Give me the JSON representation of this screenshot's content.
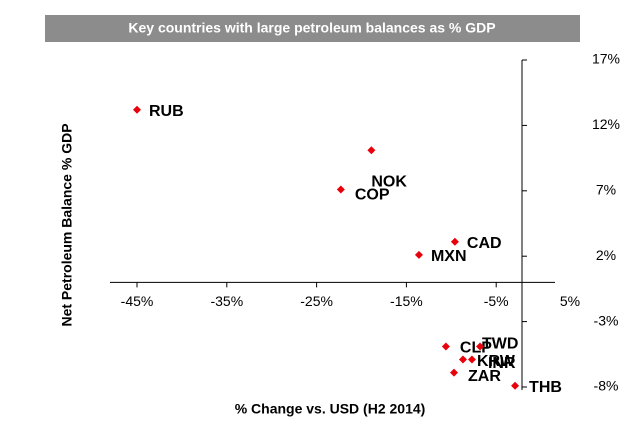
{
  "chart_data": {
    "type": "scatter",
    "title": "Key countries with large petroleum balances as % GDP",
    "x_label": "% Change vs. USD (H2 2014)",
    "y_label": "Net Petroleum Balance % GDP",
    "series": [
      {
        "name": "Countries",
        "color": "#e8000b",
        "labels": [
          "RUB",
          "NOK",
          "COP",
          "CAD",
          "MXN",
          "CLP",
          "TWD",
          "KRW",
          "INR",
          "ZAR",
          "THB"
        ],
        "x": [
          -45,
          -18.9,
          -22.3,
          -9.6,
          -13.6,
          -10.6,
          -6.8,
          -8.7,
          -7.7,
          -9.7,
          -2.9
        ],
        "values": [
          13.2,
          10.1,
          7.1,
          3.1,
          2.1,
          -4.9,
          -4.9,
          -5.9,
          -5.9,
          -6.9,
          -7.9
        ]
      }
    ],
    "xlim": [
      -45,
      5
    ],
    "xticks": [
      {
        "value": -45,
        "label": "-45%"
      },
      {
        "value": -35,
        "label": "-35%"
      },
      {
        "value": -25,
        "label": "-25%"
      },
      {
        "value": -15,
        "label": "-15%"
      },
      {
        "value": -5,
        "label": "-5%"
      },
      {
        "value": 5,
        "label": "5%"
      }
    ],
    "ylim": [
      -8,
      17
    ],
    "yticks": [
      {
        "value": 17,
        "label": "17%"
      },
      {
        "value": 12,
        "label": "12%"
      },
      {
        "value": 7,
        "label": "7%"
      },
      {
        "value": 2,
        "label": "2%"
      },
      {
        "value": -3,
        "label": "-3%"
      },
      {
        "value": -8,
        "label": "-8%"
      }
    ]
  }
}
